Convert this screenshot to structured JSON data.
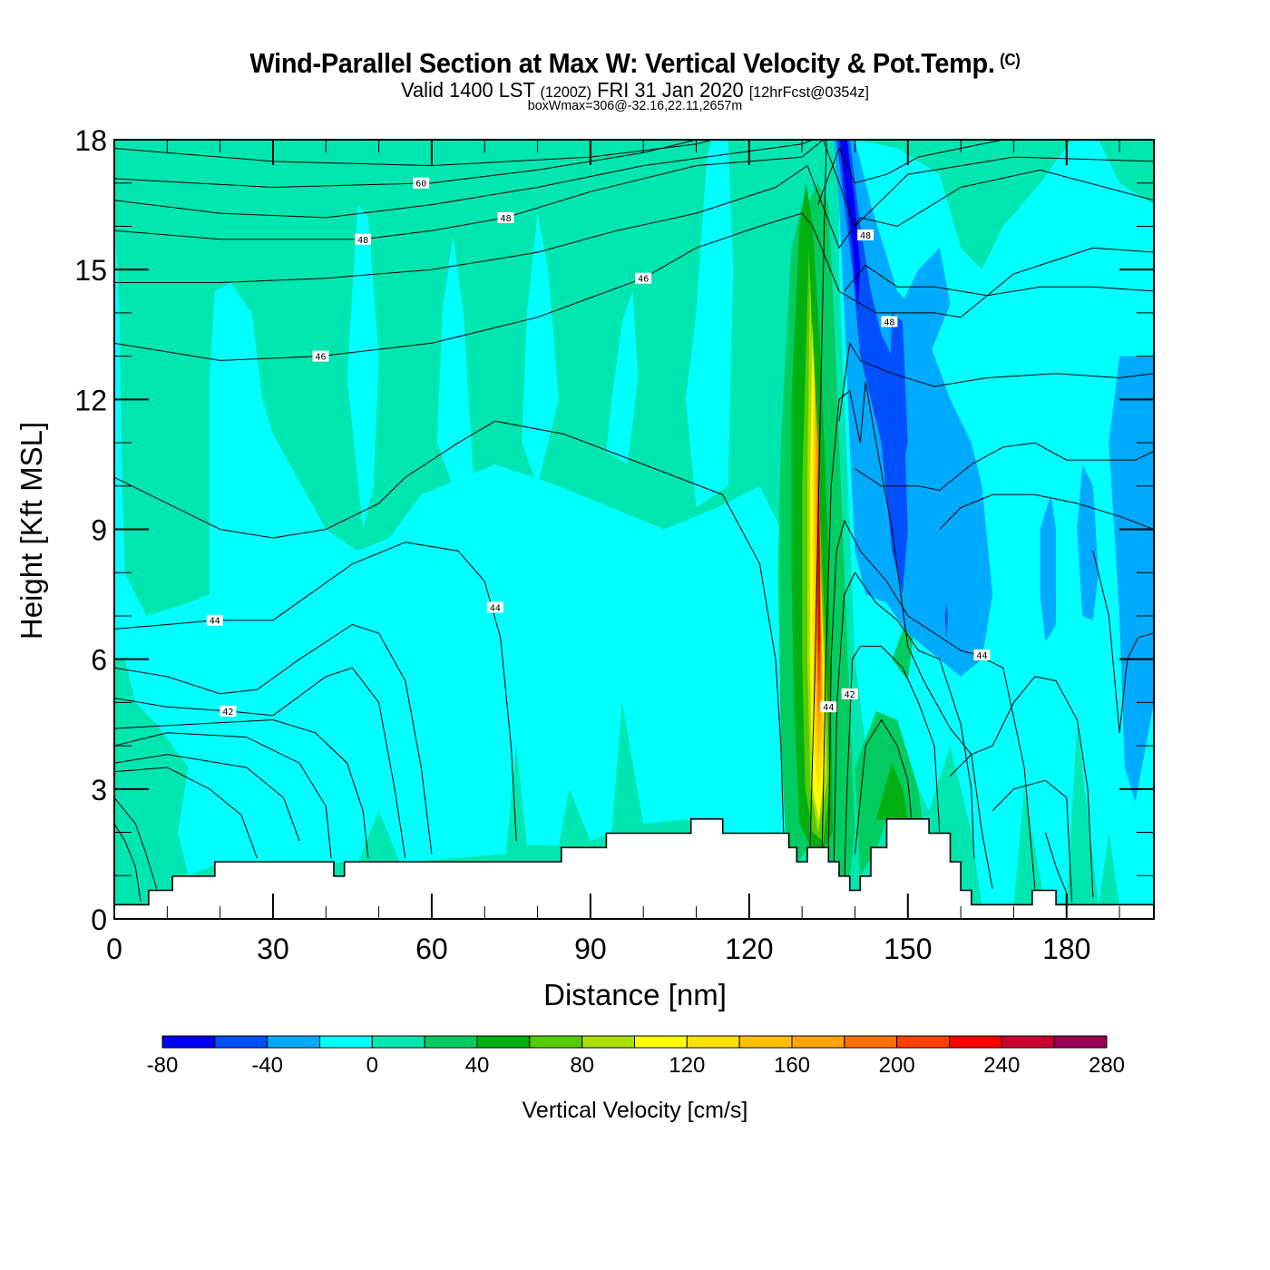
{
  "header": {
    "title": "Wind-Parallel Section at Max W: Vertical Velocity & Pot.Temp.",
    "copyright": "(C)",
    "valid_prefix": "Valid 1400 LST",
    "valid_utc": "(1200Z)",
    "valid_date": "FRI 31 Jan 2020",
    "forecast": "[12hrFcst@0354z]",
    "box_info": "boxWmax=306@-32.16,22.11,2657m"
  },
  "chart_data": {
    "type": "heatmap",
    "subtype": "cross-section filled contour with line contours",
    "title": "Wind-Parallel Section at Max W: Vertical Velocity & Pot.Temp.",
    "xlabel": "Distance [nm]",
    "ylabel": "Height [Kft MSL]",
    "xlim": [
      0,
      196.5
    ],
    "ylim": [
      0,
      18
    ],
    "x_ticks": [
      0,
      30,
      60,
      90,
      120,
      150,
      180
    ],
    "x_tick_labels": [
      "0",
      "30",
      "60",
      "90",
      "120",
      "150",
      "180"
    ],
    "x_minor_step": 10,
    "y_ticks": [
      0,
      3,
      6,
      9,
      12,
      15,
      18
    ],
    "y_tick_labels": [
      "0",
      "3",
      "6",
      "9",
      "12",
      "15",
      "18"
    ],
    "y_minor_step": 1,
    "colorbar": {
      "title": "Vertical Velocity [cm/s]",
      "levels": [
        -80,
        -60,
        -40,
        -20,
        0,
        20,
        40,
        60,
        80,
        100,
        120,
        140,
        160,
        180,
        200,
        220,
        240,
        260,
        280
      ],
      "tick_values": [
        -80,
        -40,
        0,
        40,
        80,
        120,
        160,
        200,
        240,
        280
      ],
      "tick_labels": [
        "-80",
        "-40",
        "0",
        "40",
        "80",
        "120",
        "160",
        "200",
        "240",
        "280"
      ],
      "colors": [
        "#0000f5",
        "#0050ff",
        "#00aaff",
        "#00ffff",
        "#00e6b0",
        "#00cc60",
        "#00b010",
        "#55cc00",
        "#aae000",
        "#ffff00",
        "#ffe000",
        "#ffc000",
        "#ffa500",
        "#ff7000",
        "#ff4000",
        "#ff0000",
        "#cc0030",
        "#990055"
      ],
      "orientation": "horizontal",
      "placement": "bottom"
    },
    "max_vertical_velocity": {
      "value": 306,
      "unit": "cm/s",
      "height_m": 2657
    },
    "updraft_core": {
      "x_nm": 134,
      "y_kft": [
        1.5,
        16.5
      ],
      "peak_value_range": "260-280",
      "peak_height_kft": 7.5
    },
    "downdraft_core": {
      "x_nm": [
        137,
        155
      ],
      "y_kft": [
        6,
        18
      ],
      "min_value_range": "-80 to -60"
    },
    "theta_contours": {
      "variable": "Potential Temperature",
      "labels": [
        {
          "text": "60",
          "x": 58,
          "y": 17.0
        },
        {
          "text": "48",
          "x": 74,
          "y": 16.2
        },
        {
          "text": "48",
          "x": 47,
          "y": 15.7
        },
        {
          "text": "48",
          "x": 142,
          "y": 15.8
        },
        {
          "text": "46",
          "x": 100,
          "y": 14.8
        },
        {
          "text": "46",
          "x": 39,
          "y": 13.0
        },
        {
          "text": "48",
          "x": 146.5,
          "y": 13.8
        },
        {
          "text": "44",
          "x": 19,
          "y": 6.9
        },
        {
          "text": "44",
          "x": 72,
          "y": 7.2
        },
        {
          "text": "42",
          "x": 21.5,
          "y": 4.8
        },
        {
          "text": "44",
          "x": 135,
          "y": 4.9
        },
        {
          "text": "42",
          "x": 139,
          "y": 5.2
        },
        {
          "text": "44",
          "x": 164,
          "y": 6.1
        }
      ]
    },
    "terrain_profile": {
      "unit_x": "nm",
      "unit_y": "kft",
      "steps": [
        [
          0,
          0.33
        ],
        [
          6.5,
          0.66
        ],
        [
          11,
          0.99
        ],
        [
          19,
          1.32
        ],
        [
          41.5,
          0.99
        ],
        [
          43.5,
          1.32
        ],
        [
          84.5,
          1.65
        ],
        [
          93,
          1.98
        ],
        [
          109,
          2.31
        ],
        [
          115,
          1.98
        ],
        [
          127.5,
          1.65
        ],
        [
          129,
          1.32
        ],
        [
          131,
          1.65
        ],
        [
          135,
          1.32
        ],
        [
          137,
          0.99
        ],
        [
          139,
          0.66
        ],
        [
          141,
          0.99
        ],
        [
          143,
          1.65
        ],
        [
          146,
          2.31
        ],
        [
          154,
          1.98
        ],
        [
          158,
          1.32
        ],
        [
          160,
          0.66
        ],
        [
          162,
          0.33
        ],
        [
          173.5,
          0.66
        ],
        [
          178,
          0.33
        ],
        [
          196.5,
          0.33
        ]
      ]
    }
  }
}
